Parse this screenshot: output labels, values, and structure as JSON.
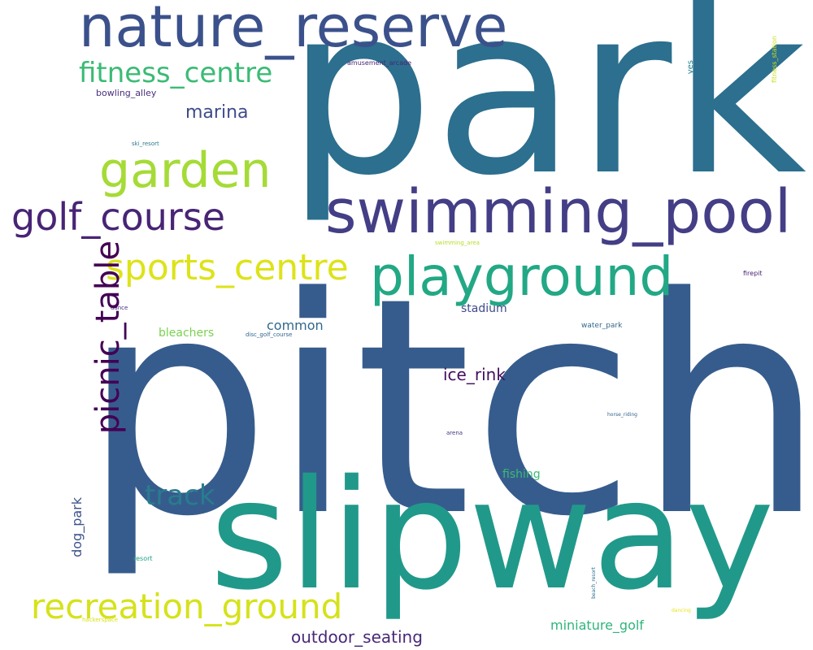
{
  "words": [
    {
      "text": "park",
      "color": "#2c6f8e"
    },
    {
      "text": "pitch",
      "color": "#365c8d"
    },
    {
      "text": "slipway",
      "color": "#21998a"
    },
    {
      "text": "nature_reserve",
      "color": "#3b518b"
    },
    {
      "text": "swimming_pool",
      "color": "#433e85"
    },
    {
      "text": "playground",
      "color": "#22a885"
    },
    {
      "text": "garden",
      "color": "#a5db36"
    },
    {
      "text": "golf_course",
      "color": "#482475"
    },
    {
      "text": "sports_centre",
      "color": "#dde318"
    },
    {
      "text": "picnic_table",
      "color": "#440154"
    },
    {
      "text": "recreation_ground",
      "color": "#d5e21a"
    },
    {
      "text": "fitness_centre",
      "color": "#3bbb75"
    },
    {
      "text": "track",
      "color": "#287c8e"
    },
    {
      "text": "marina",
      "color": "#3e4c8a"
    },
    {
      "text": "outdoor_seating",
      "color": "#482878"
    },
    {
      "text": "ice_rink",
      "color": "#440f5f"
    },
    {
      "text": "miniature_golf",
      "color": "#2fb47c"
    },
    {
      "text": "common",
      "color": "#31688e"
    },
    {
      "text": "bleachers",
      "color": "#7ad151"
    },
    {
      "text": "stadium",
      "color": "#3e4989"
    },
    {
      "text": "fishing",
      "color": "#3bbb75"
    },
    {
      "text": "dog_park",
      "color": "#3b528b"
    },
    {
      "text": "bowling_alley",
      "color": "#472f7d"
    },
    {
      "text": "amusement_arcade",
      "color": "#482576"
    },
    {
      "text": "yes",
      "color": "#26828e"
    },
    {
      "text": "fitness_station",
      "color": "#c8e020"
    },
    {
      "text": "ski_resort",
      "color": "#2a788e"
    },
    {
      "text": "swimming_area",
      "color": "#b5de2b"
    },
    {
      "text": "firepit",
      "color": "#481f70"
    },
    {
      "text": "dance",
      "color": "#472d7b"
    },
    {
      "text": "disc_golf_course",
      "color": "#32648e"
    },
    {
      "text": "water_park",
      "color": "#31688e"
    },
    {
      "text": "horse_riding",
      "color": "#355f8d"
    },
    {
      "text": "arena",
      "color": "#453882"
    },
    {
      "text": "resort",
      "color": "#20a386"
    },
    {
      "text": "beach_resort",
      "color": "#2d708e"
    },
    {
      "text": "dancing",
      "color": "#e7e419"
    },
    {
      "text": "hackerspace",
      "color": "#d8e219"
    }
  ]
}
